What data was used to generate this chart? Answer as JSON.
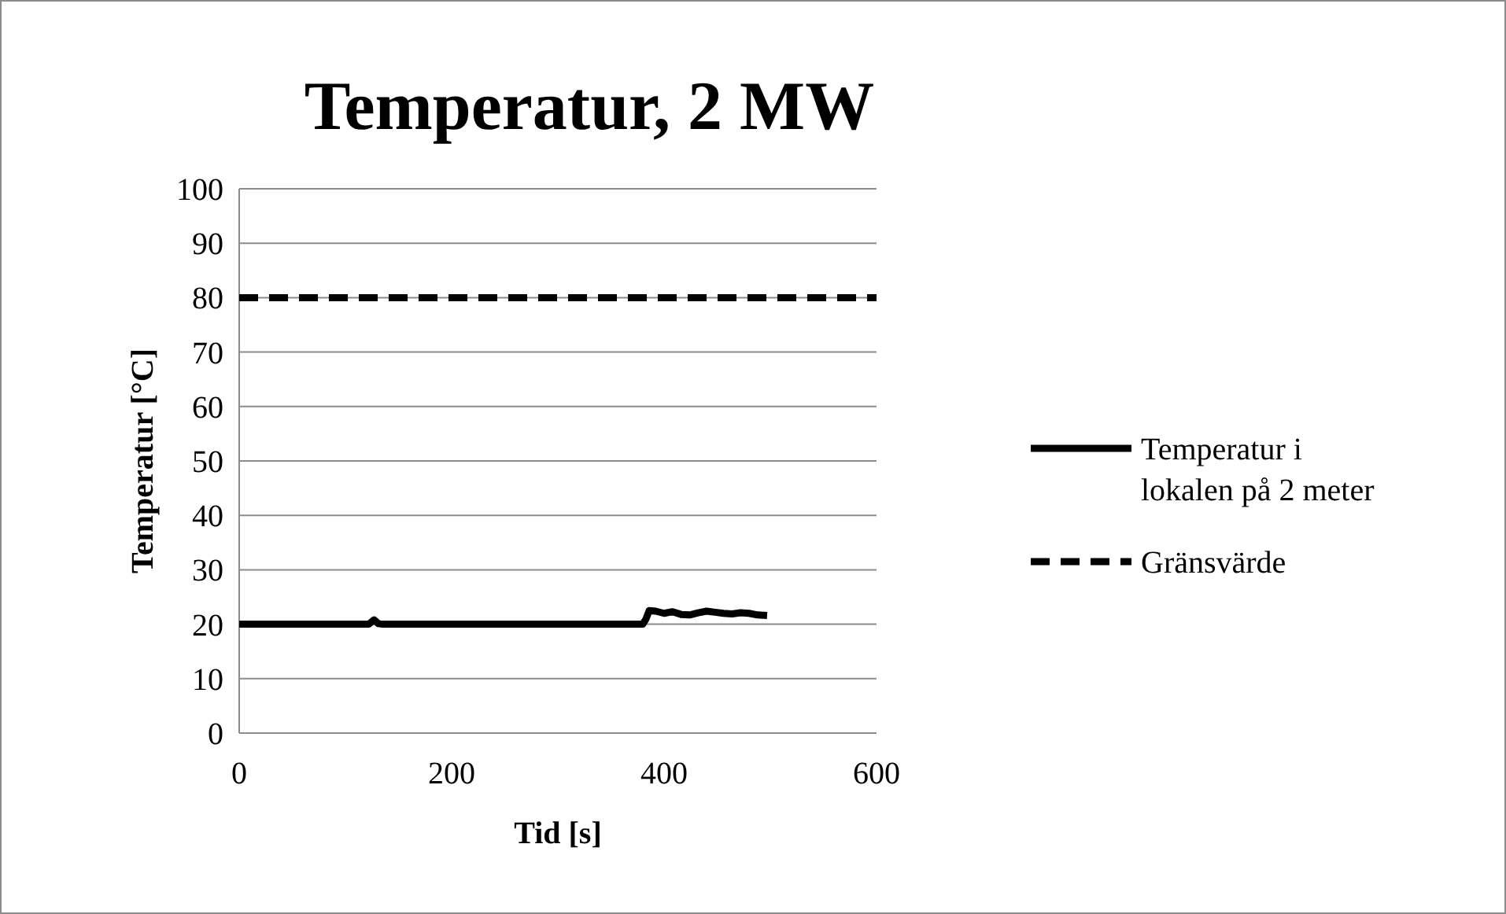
{
  "chart_data": {
    "type": "line",
    "title": "Temperatur, 2 MW",
    "xlabel": "Tid [s]",
    "ylabel": "Temperatur [°C]",
    "xlim": [
      0,
      600
    ],
    "xticks": [
      0,
      200,
      400,
      600
    ],
    "ylim": [
      0,
      100
    ],
    "yticks": [
      0,
      10,
      20,
      30,
      40,
      50,
      60,
      70,
      80,
      90,
      100
    ],
    "grid": "y",
    "legend": "right",
    "series": [
      {
        "name": "Temperatur i lokalen på 2 meter",
        "color": "#000000",
        "line_style": "solid",
        "x": [
          0,
          50,
          100,
          122,
          127,
          131,
          135,
          200,
          300,
          380,
          383,
          386,
          392,
          400,
          408,
          416,
          424,
          432,
          440,
          448,
          456,
          464,
          472,
          480,
          488,
          497
        ],
        "values": [
          20,
          20,
          20,
          20,
          20.8,
          20.1,
          20,
          20,
          20,
          20,
          21,
          22.5,
          22.4,
          22,
          22.3,
          21.8,
          21.7,
          22.1,
          22.4,
          22.2,
          22,
          21.9,
          22.1,
          22,
          21.7,
          21.6
        ]
      },
      {
        "name": "Gränsvärde",
        "color": "#000000",
        "line_style": "dashed",
        "x": [
          0,
          600
        ],
        "values": [
          80,
          80
        ]
      }
    ]
  }
}
